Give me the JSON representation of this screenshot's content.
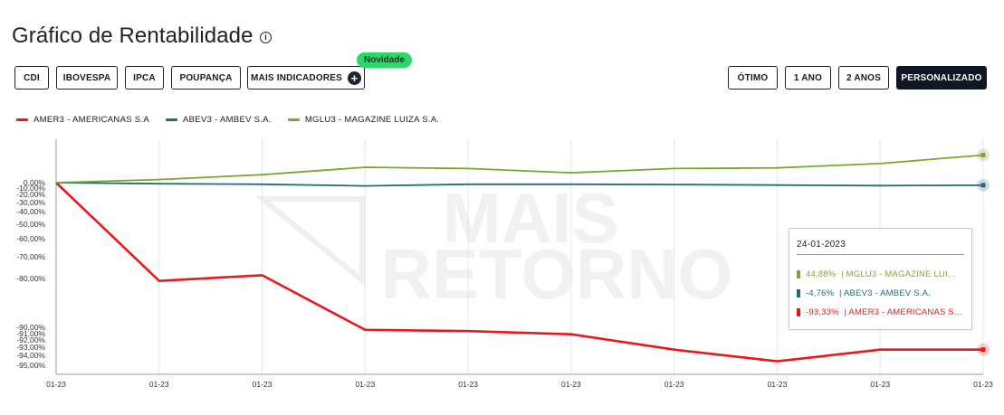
{
  "header": {
    "title": "Gráfico de Rentabilidade",
    "info_icon": "info-circle-icon"
  },
  "indicators": {
    "buttons": [
      "CDI",
      "IBOVESPA",
      "IPCA",
      "POUPANÇA",
      "MAIS INDICADORES"
    ],
    "badge": "Novidade"
  },
  "periods": {
    "buttons": [
      "ÓTIMO",
      "1 ANO",
      "2 ANOS",
      "PERSONALIZADO"
    ],
    "selected": "PERSONALIZADO"
  },
  "colors": {
    "amer3": "#e8191c",
    "abev3": "#1f6f74",
    "mglu3": "#7ca62e",
    "dark": "#0f1624",
    "badge": "#2bd96a"
  },
  "watermark": {
    "line1": "MAIS",
    "line2": "RETORNO"
  },
  "tooltip": {
    "date": "24-01-2023",
    "rows": [
      {
        "value": "44,88%",
        "label": "| MGLU3 - MAGAZINE LUI...",
        "color": "#7ca62e"
      },
      {
        "value": "-4,76%",
        "label": "| ABEV3 - AMBEV S.A.",
        "color": "#1f6f74"
      },
      {
        "value": "-93,33%",
        "label": "| AMER3 - AMERICANAS S...",
        "color": "#e8191c"
      }
    ]
  },
  "chart_data": {
    "type": "line",
    "x": [
      "01-23",
      "01-23",
      "01-23",
      "01-23",
      "01-23",
      "01-23",
      "01-23",
      "01-23",
      "01-23",
      "01-23"
    ],
    "y_tick_labels": [
      "0,00%",
      "-10,00%",
      "-20,00%",
      "-30,00%",
      "-40,00%",
      "-50,00%",
      "-60,00%",
      "-70,00%",
      "-80,00%",
      "-90,00%",
      "-91,00%",
      "-92,00%",
      "-93,00%",
      "-94,00%",
      "-95,00%"
    ],
    "y_scale": "compressed non-linear",
    "grid": "vertical",
    "legend": "top-left",
    "series": [
      {
        "name": "AMER3 - AMERICANAS S.A",
        "color": "#e8191c",
        "values": [
          0,
          -80.5,
          -78.5,
          -90.4,
          -90.6,
          -91.1,
          -93.3,
          -94.6,
          -93.3,
          -93.3
        ]
      },
      {
        "name": "ABEV3 - AMBEV S.A.",
        "color": "#1f6f74",
        "values": [
          0,
          -2,
          -3,
          -6,
          -3,
          -3,
          -3.5,
          -4.5,
          -5.5,
          -4.76
        ]
      },
      {
        "name": "MGLU3 - MAGAZINE LUIZA S.A.",
        "color": "#7ca62e",
        "values": [
          0,
          5,
          13,
          25,
          23,
          16,
          23,
          24,
          31,
          44.88
        ]
      }
    ]
  }
}
